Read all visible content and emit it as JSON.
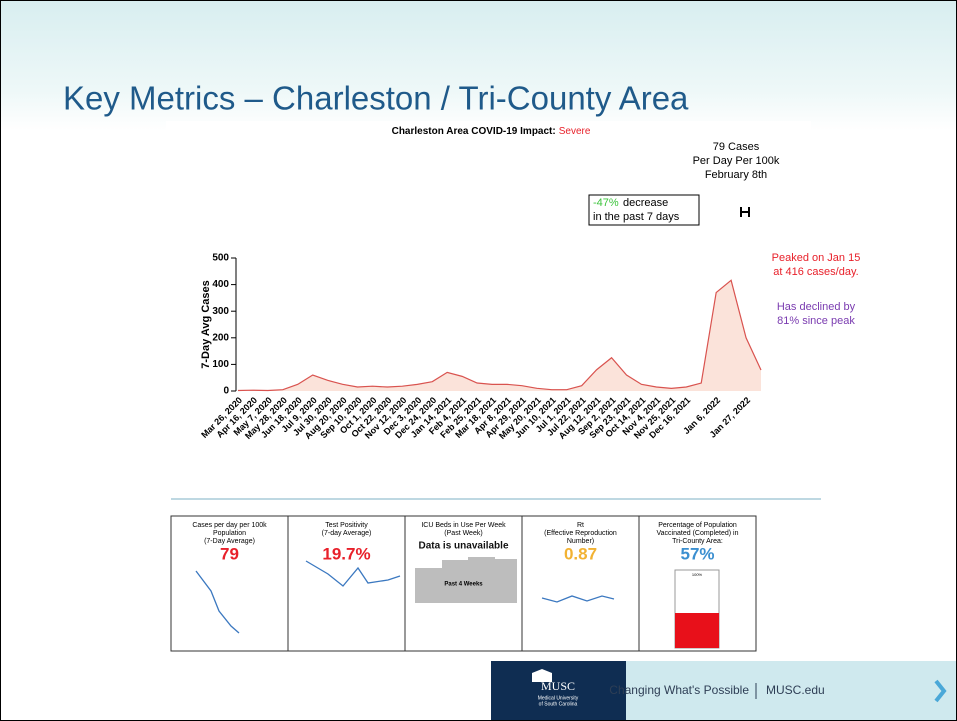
{
  "slide_title": "Key Metrics – Charleston / Tri-County Area",
  "chart_data": {
    "type": "line",
    "title": "Charleston Area COVID-19 Impact:",
    "title_status": "Severe",
    "ylabel": "7-Day Avg Cases",
    "categories": [
      "Mar 26, 2020",
      "Apr 16, 2020",
      "May 7, 2020",
      "May 28, 2020",
      "Jun 18, 2020",
      "Jul 9, 2020",
      "Jul 30, 2020",
      "Aug 20, 2020",
      "Sep 10, 2020",
      "Oct 1, 2020",
      "Oct 22, 2020",
      "Nov 12, 2020",
      "Dec 3, 2020",
      "Dec 24, 2020",
      "Jan 14, 2021",
      "Feb 4, 2021",
      "Feb 25, 2021",
      "Mar 18, 2021",
      "Apr 8, 2021",
      "Apr 29, 2021",
      "May 20, 2021",
      "Jun 10, 2021",
      "Jul 1, 2021",
      "Jul 22, 2021",
      "Aug 12, 2021",
      "Sep 2, 2021",
      "Sep 23, 2021",
      "Oct 14, 2021",
      "Nov 4, 2021",
      "Nov 25, 2021",
      "Dec 16, 2021",
      null,
      "Jan 6, 2022",
      null,
      "Jan 27, 2022",
      null
    ],
    "values": [
      2,
      3,
      2,
      5,
      25,
      60,
      40,
      25,
      15,
      18,
      15,
      18,
      25,
      35,
      70,
      55,
      30,
      25,
      25,
      20,
      10,
      5,
      5,
      20,
      80,
      125,
      60,
      25,
      15,
      10,
      15,
      30,
      370,
      416,
      200,
      79
    ],
    "color": "#d9534f",
    "fill": "#fbe3da",
    "ylim": [
      0,
      500
    ],
    "yticks": [
      0,
      100,
      200,
      300,
      400,
      500
    ],
    "annotations": {
      "current": [
        "79 Cases",
        "Per Day Per 100k",
        "February 8th"
      ],
      "change_pct": "-47%",
      "change_text": [
        "decrease",
        "in the past 7 days"
      ],
      "peak": [
        "Peaked on Jan 15",
        "at 416 cases/day."
      ],
      "decline": [
        "Has declined by",
        "81% since peak"
      ]
    }
  },
  "cards": [
    {
      "title": [
        "Cases per day per 100k",
        "Population",
        "(7-Day Average)"
      ],
      "value": "79",
      "color": "#e8202a"
    },
    {
      "title": [
        "Test Positivity",
        "(7-day Average)"
      ],
      "value": "19.7%",
      "color": "#e8202a"
    },
    {
      "title": [
        "ICU Beds in Use Per Week",
        "(Past Week)"
      ],
      "value": "Data is unavailable",
      "note": "Past 4 Weeks",
      "color": "#111111"
    },
    {
      "title": [
        "Rt",
        "(Effective Reproduction",
        "Number)"
      ],
      "value": "0.87",
      "color": "#f2b233"
    },
    {
      "title": [
        "Percentage of Population",
        "Vaccinated (Completed) in",
        "Tri-County Area:"
      ],
      "value": "57%",
      "note": "100%",
      "color": "#3b8fd0"
    }
  ],
  "footer": {
    "logo": "MUSC",
    "logo_sub": [
      "Medical University",
      "of South Carolina"
    ],
    "tagline": "Changing What's Possible",
    "site": "MUSC.edu"
  }
}
